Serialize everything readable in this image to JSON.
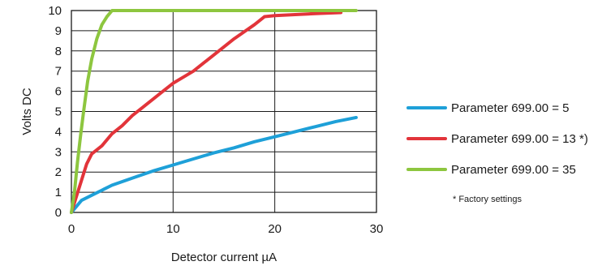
{
  "chart_data": {
    "type": "line",
    "title": "",
    "xlabel": "Detector current µA",
    "ylabel": "Volts DC",
    "xlim": [
      0,
      30
    ],
    "ylim": [
      0,
      10
    ],
    "x_ticks": [
      0,
      10,
      20,
      30
    ],
    "y_ticks": [
      0,
      1,
      2,
      3,
      4,
      5,
      6,
      7,
      8,
      9,
      10
    ],
    "grid": "on (vertical lines at 10 and 20 µA, horizontal lines at every 1 V)",
    "legend_position": "right",
    "series": [
      {
        "name": "Parameter 699.00 = 5",
        "color": "#1ea0d8",
        "points": [
          [
            0,
            0
          ],
          [
            0.5,
            0.3
          ],
          [
            1,
            0.6
          ],
          [
            2,
            0.85
          ],
          [
            3,
            1.1
          ],
          [
            4,
            1.35
          ],
          [
            6,
            1.7
          ],
          [
            8,
            2.05
          ],
          [
            10,
            2.35
          ],
          [
            12,
            2.65
          ],
          [
            14,
            2.95
          ],
          [
            16,
            3.2
          ],
          [
            18,
            3.5
          ],
          [
            20,
            3.75
          ],
          [
            22,
            4.0
          ],
          [
            24,
            4.25
          ],
          [
            26,
            4.5
          ],
          [
            28,
            4.7
          ]
        ]
      },
      {
        "name": "Parameter 699.00 = 13 *)",
        "color": "#e2343a",
        "points": [
          [
            0,
            0
          ],
          [
            0.5,
            0.8
          ],
          [
            1,
            1.6
          ],
          [
            1.5,
            2.4
          ],
          [
            2,
            2.9
          ],
          [
            3,
            3.3
          ],
          [
            4,
            3.9
          ],
          [
            5,
            4.3
          ],
          [
            6,
            4.8
          ],
          [
            7,
            5.2
          ],
          [
            8,
            5.6
          ],
          [
            9,
            6.0
          ],
          [
            10,
            6.4
          ],
          [
            11,
            6.7
          ],
          [
            12,
            7.0
          ],
          [
            13,
            7.4
          ],
          [
            14,
            7.8
          ],
          [
            15,
            8.2
          ],
          [
            16,
            8.6
          ],
          [
            17,
            8.95
          ],
          [
            18,
            9.3
          ],
          [
            19,
            9.7
          ],
          [
            20,
            9.75
          ],
          [
            22,
            9.8
          ],
          [
            24,
            9.85
          ],
          [
            26.5,
            9.9
          ]
        ]
      },
      {
        "name": "Parameter 699.00 = 35",
        "color": "#8dc63f",
        "points": [
          [
            0,
            0
          ],
          [
            0.3,
            1.0
          ],
          [
            0.6,
            2.5
          ],
          [
            0.9,
            3.8
          ],
          [
            1.2,
            5.0
          ],
          [
            1.6,
            6.5
          ],
          [
            2.0,
            7.6
          ],
          [
            2.5,
            8.6
          ],
          [
            3.0,
            9.3
          ],
          [
            3.5,
            9.7
          ],
          [
            4.0,
            10.0
          ],
          [
            28,
            10.0
          ]
        ]
      }
    ],
    "footnote": "* Factory settings"
  }
}
